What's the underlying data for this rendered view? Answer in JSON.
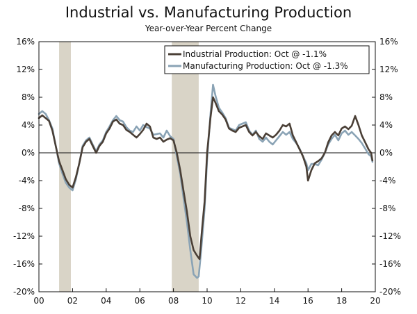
{
  "chart_data": {
    "type": "line",
    "title": "Industrial vs. Manufacturing Production",
    "subtitle": "Year-over-Year Percent Change",
    "xlim": [
      2000,
      2020
    ],
    "ylim": [
      -20,
      16
    ],
    "x_ticks": [
      {
        "value": 2000,
        "label": "00"
      },
      {
        "value": 2002,
        "label": "02"
      },
      {
        "value": 2004,
        "label": "04"
      },
      {
        "value": 2006,
        "label": "06"
      },
      {
        "value": 2008,
        "label": "08"
      },
      {
        "value": 2010,
        "label": "10"
      },
      {
        "value": 2012,
        "label": "12"
      },
      {
        "value": 2014,
        "label": "14"
      },
      {
        "value": 2016,
        "label": "16"
      },
      {
        "value": 2018,
        "label": "18"
      },
      {
        "value": 2020,
        "label": "20"
      }
    ],
    "y_ticks": [
      {
        "value": 16,
        "label": "16%"
      },
      {
        "value": 12,
        "label": "12%"
      },
      {
        "value": 8,
        "label": "8%"
      },
      {
        "value": 4,
        "label": "4%"
      },
      {
        "value": 0,
        "label": "0%"
      },
      {
        "value": -4,
        "label": "-4%"
      },
      {
        "value": -8,
        "label": "-8%"
      },
      {
        "value": -12,
        "label": "-12%"
      },
      {
        "value": -16,
        "label": "-16%"
      },
      {
        "value": -20,
        "label": "-20%"
      }
    ],
    "recessions": [
      {
        "start": 2001.2,
        "end": 2001.9
      },
      {
        "start": 2007.9,
        "end": 2009.5
      }
    ],
    "zero_line": true,
    "grid": false,
    "legend_position": "top-right",
    "series": [
      {
        "name": "Industrial Production: Oct @ -1.1%",
        "color": "#4a3f36",
        "points": [
          [
            2000.0,
            5.0
          ],
          [
            2000.2,
            5.4
          ],
          [
            2000.4,
            5.0
          ],
          [
            2000.6,
            4.6
          ],
          [
            2000.8,
            3.2
          ],
          [
            2001.0,
            1.0
          ],
          [
            2001.2,
            -1.2
          ],
          [
            2001.4,
            -2.5
          ],
          [
            2001.6,
            -3.8
          ],
          [
            2001.8,
            -4.6
          ],
          [
            2002.0,
            -5.0
          ],
          [
            2002.2,
            -3.5
          ],
          [
            2002.4,
            -1.5
          ],
          [
            2002.6,
            0.8
          ],
          [
            2002.8,
            1.6
          ],
          [
            2003.0,
            2.0
          ],
          [
            2003.2,
            1.0
          ],
          [
            2003.4,
            0.0
          ],
          [
            2003.6,
            1.0
          ],
          [
            2003.8,
            1.6
          ],
          [
            2004.0,
            2.8
          ],
          [
            2004.2,
            3.5
          ],
          [
            2004.4,
            4.5
          ],
          [
            2004.6,
            4.8
          ],
          [
            2004.8,
            4.2
          ],
          [
            2005.0,
            4.0
          ],
          [
            2005.2,
            3.3
          ],
          [
            2005.4,
            3.0
          ],
          [
            2005.6,
            2.6
          ],
          [
            2005.8,
            2.2
          ],
          [
            2006.0,
            2.7
          ],
          [
            2006.2,
            3.3
          ],
          [
            2006.4,
            4.2
          ],
          [
            2006.6,
            3.8
          ],
          [
            2006.8,
            2.2
          ],
          [
            2007.0,
            2.0
          ],
          [
            2007.2,
            2.2
          ],
          [
            2007.4,
            1.6
          ],
          [
            2007.6,
            1.9
          ],
          [
            2007.8,
            2.1
          ],
          [
            2008.0,
            1.8
          ],
          [
            2008.2,
            0.0
          ],
          [
            2008.4,
            -2.5
          ],
          [
            2008.6,
            -5.5
          ],
          [
            2008.8,
            -8.5
          ],
          [
            2009.0,
            -12.0
          ],
          [
            2009.2,
            -14.0
          ],
          [
            2009.4,
            -14.8
          ],
          [
            2009.55,
            -15.3
          ],
          [
            2009.7,
            -11.0
          ],
          [
            2009.85,
            -7.0
          ],
          [
            2010.0,
            0.0
          ],
          [
            2010.2,
            5.0
          ],
          [
            2010.35,
            8.0
          ],
          [
            2010.5,
            7.2
          ],
          [
            2010.7,
            6.0
          ],
          [
            2010.9,
            5.5
          ],
          [
            2011.1,
            4.8
          ],
          [
            2011.3,
            3.5
          ],
          [
            2011.5,
            3.2
          ],
          [
            2011.7,
            3.0
          ],
          [
            2011.9,
            3.6
          ],
          [
            2012.1,
            3.8
          ],
          [
            2012.3,
            4.0
          ],
          [
            2012.5,
            3.0
          ],
          [
            2012.7,
            2.5
          ],
          [
            2012.9,
            3.0
          ],
          [
            2013.1,
            2.4
          ],
          [
            2013.3,
            2.0
          ],
          [
            2013.5,
            2.8
          ],
          [
            2013.7,
            2.5
          ],
          [
            2013.9,
            2.2
          ],
          [
            2014.1,
            2.6
          ],
          [
            2014.3,
            3.2
          ],
          [
            2014.5,
            4.0
          ],
          [
            2014.7,
            3.8
          ],
          [
            2014.9,
            4.2
          ],
          [
            2015.1,
            2.5
          ],
          [
            2015.3,
            1.5
          ],
          [
            2015.5,
            0.5
          ],
          [
            2015.7,
            -0.5
          ],
          [
            2015.9,
            -2.0
          ],
          [
            2016.0,
            -4.0
          ],
          [
            2016.2,
            -2.5
          ],
          [
            2016.4,
            -1.5
          ],
          [
            2016.6,
            -1.2
          ],
          [
            2016.8,
            -0.8
          ],
          [
            2017.0,
            0.0
          ],
          [
            2017.2,
            1.5
          ],
          [
            2017.4,
            2.5
          ],
          [
            2017.6,
            3.0
          ],
          [
            2017.8,
            2.5
          ],
          [
            2018.0,
            3.5
          ],
          [
            2018.2,
            3.8
          ],
          [
            2018.4,
            3.4
          ],
          [
            2018.6,
            3.9
          ],
          [
            2018.8,
            5.3
          ],
          [
            2019.0,
            4.0
          ],
          [
            2019.2,
            2.5
          ],
          [
            2019.4,
            1.5
          ],
          [
            2019.6,
            0.5
          ],
          [
            2019.75,
            0.0
          ],
          [
            2019.83,
            -1.1
          ]
        ]
      },
      {
        "name": "Manufacturing Production: Oct @ -1.3%",
        "color": "#8aa3b5",
        "points": [
          [
            2000.0,
            5.6
          ],
          [
            2000.2,
            6.0
          ],
          [
            2000.4,
            5.6
          ],
          [
            2000.6,
            4.7
          ],
          [
            2000.8,
            3.5
          ],
          [
            2001.0,
            1.0
          ],
          [
            2001.2,
            -1.5
          ],
          [
            2001.4,
            -3.0
          ],
          [
            2001.6,
            -4.3
          ],
          [
            2001.8,
            -5.0
          ],
          [
            2002.0,
            -5.4
          ],
          [
            2002.2,
            -3.8
          ],
          [
            2002.4,
            -1.5
          ],
          [
            2002.6,
            1.0
          ],
          [
            2002.8,
            1.8
          ],
          [
            2003.0,
            2.2
          ],
          [
            2003.2,
            1.2
          ],
          [
            2003.4,
            0.2
          ],
          [
            2003.6,
            1.2
          ],
          [
            2003.8,
            1.8
          ],
          [
            2004.0,
            3.0
          ],
          [
            2004.2,
            3.8
          ],
          [
            2004.4,
            4.7
          ],
          [
            2004.6,
            5.3
          ],
          [
            2004.8,
            4.7
          ],
          [
            2005.0,
            4.5
          ],
          [
            2005.2,
            3.7
          ],
          [
            2005.4,
            3.2
          ],
          [
            2005.6,
            3.0
          ],
          [
            2005.8,
            3.8
          ],
          [
            2006.0,
            3.2
          ],
          [
            2006.2,
            4.0
          ],
          [
            2006.4,
            3.7
          ],
          [
            2006.6,
            3.5
          ],
          [
            2006.8,
            2.6
          ],
          [
            2007.0,
            2.7
          ],
          [
            2007.2,
            2.8
          ],
          [
            2007.4,
            2.2
          ],
          [
            2007.6,
            3.2
          ],
          [
            2007.8,
            2.4
          ],
          [
            2008.0,
            2.0
          ],
          [
            2008.2,
            -0.5
          ],
          [
            2008.4,
            -3.0
          ],
          [
            2008.6,
            -6.5
          ],
          [
            2008.8,
            -10.0
          ],
          [
            2009.0,
            -14.0
          ],
          [
            2009.2,
            -17.5
          ],
          [
            2009.4,
            -18.0
          ],
          [
            2009.5,
            -17.8
          ],
          [
            2009.65,
            -14.0
          ],
          [
            2009.85,
            -8.0
          ],
          [
            2010.0,
            -1.0
          ],
          [
            2010.2,
            5.5
          ],
          [
            2010.35,
            9.8
          ],
          [
            2010.5,
            8.2
          ],
          [
            2010.7,
            6.5
          ],
          [
            2010.9,
            5.8
          ],
          [
            2011.1,
            5.0
          ],
          [
            2011.3,
            3.6
          ],
          [
            2011.5,
            3.4
          ],
          [
            2011.7,
            3.2
          ],
          [
            2011.9,
            4.0
          ],
          [
            2012.1,
            4.2
          ],
          [
            2012.3,
            4.4
          ],
          [
            2012.5,
            3.2
          ],
          [
            2012.7,
            2.6
          ],
          [
            2012.9,
            3.2
          ],
          [
            2013.1,
            2.0
          ],
          [
            2013.3,
            1.6
          ],
          [
            2013.5,
            2.2
          ],
          [
            2013.7,
            1.6
          ],
          [
            2013.9,
            1.2
          ],
          [
            2014.1,
            1.8
          ],
          [
            2014.3,
            2.4
          ],
          [
            2014.5,
            3.0
          ],
          [
            2014.7,
            2.6
          ],
          [
            2014.9,
            3.0
          ],
          [
            2015.1,
            2.0
          ],
          [
            2015.3,
            1.4
          ],
          [
            2015.5,
            0.6
          ],
          [
            2015.7,
            -0.5
          ],
          [
            2015.9,
            -1.5
          ],
          [
            2016.0,
            -2.5
          ],
          [
            2016.2,
            -1.6
          ],
          [
            2016.4,
            -1.6
          ],
          [
            2016.6,
            -1.8
          ],
          [
            2016.8,
            -1.0
          ],
          [
            2017.0,
            0.0
          ],
          [
            2017.2,
            1.2
          ],
          [
            2017.4,
            2.0
          ],
          [
            2017.6,
            2.6
          ],
          [
            2017.8,
            1.8
          ],
          [
            2018.0,
            2.8
          ],
          [
            2018.2,
            3.2
          ],
          [
            2018.4,
            2.6
          ],
          [
            2018.6,
            3.0
          ],
          [
            2018.8,
            2.5
          ],
          [
            2019.0,
            2.0
          ],
          [
            2019.2,
            1.4
          ],
          [
            2019.4,
            0.6
          ],
          [
            2019.6,
            -0.2
          ],
          [
            2019.75,
            -0.5
          ],
          [
            2019.83,
            -1.3
          ]
        ]
      }
    ]
  }
}
